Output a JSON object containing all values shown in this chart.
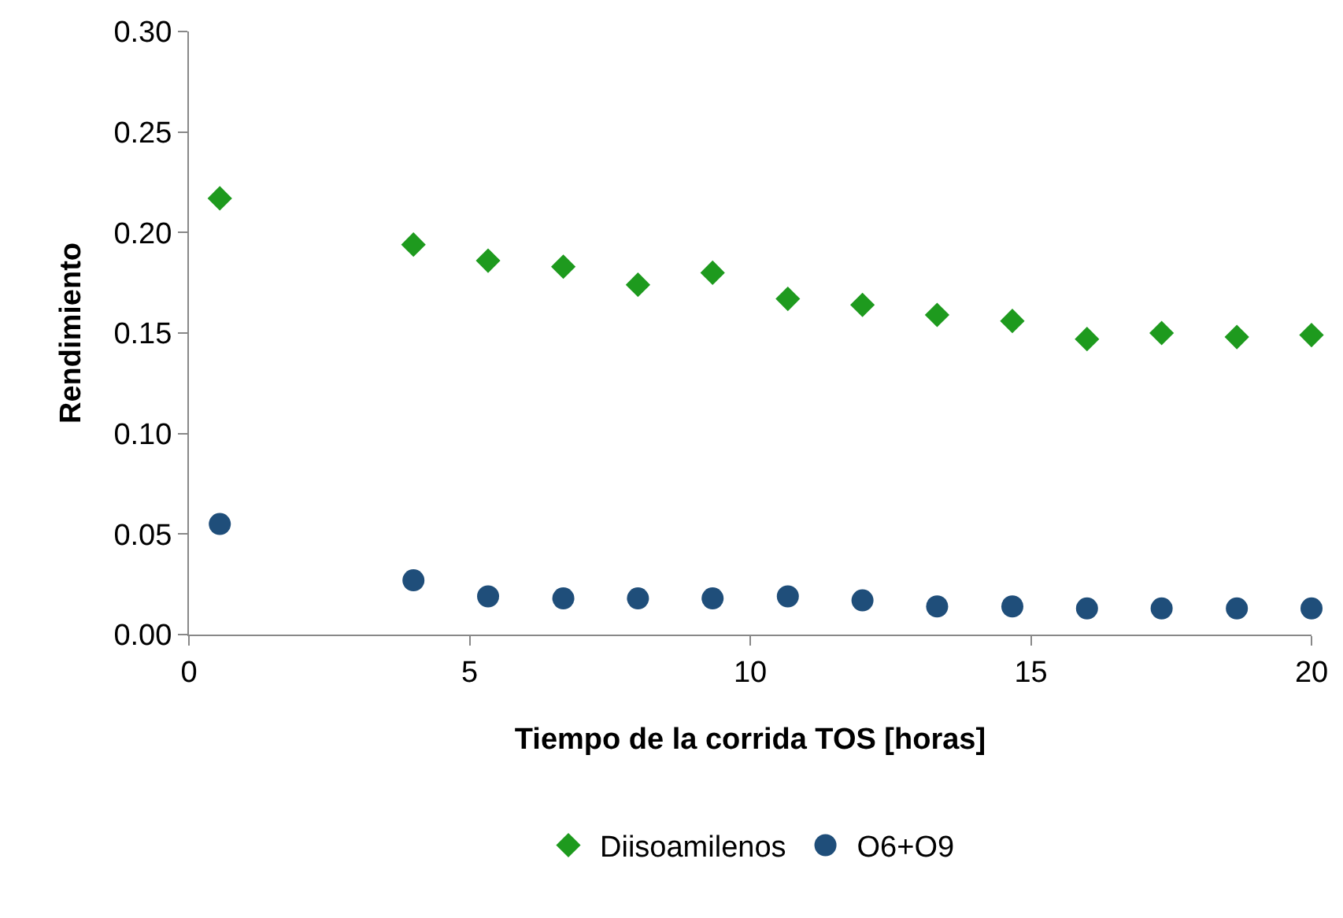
{
  "chart_data": {
    "type": "scatter",
    "xlabel": "Tiempo de la corrida TOS [horas]",
    "ylabel": "Rendimiento",
    "xlim": [
      0,
      20
    ],
    "xticks": [
      0,
      5,
      10,
      15,
      20
    ],
    "ylim": [
      0,
      0.3
    ],
    "yticks": [
      {
        "value": 0,
        "label": "0.00"
      },
      {
        "value": 0.05,
        "label": "0.05"
      },
      {
        "value": 0.1,
        "label": "0.10"
      },
      {
        "value": 0.15,
        "label": "0.15"
      },
      {
        "value": 0.2,
        "label": "0.20"
      },
      {
        "value": 0.25,
        "label": "0.25"
      },
      {
        "value": 0.3,
        "label": "0.30"
      }
    ],
    "grid": false,
    "legend": "bottom",
    "x": [
      0.55,
      4,
      5.33,
      6.67,
      8,
      9.33,
      10.67,
      12,
      13.33,
      14.67,
      16,
      17.33,
      18.67,
      20
    ],
    "series": [
      {
        "name": "Diisoamilenos",
        "color": "#1e9a1e",
        "marker": "diamond",
        "values": [
          0.217,
          0.194,
          0.186,
          0.183,
          0.174,
          0.18,
          0.167,
          0.164,
          0.159,
          0.156,
          0.147,
          0.15,
          0.148,
          0.149
        ]
      },
      {
        "name": "O6+O9",
        "color": "#1f4e7a",
        "marker": "circle",
        "values": [
          0.055,
          0.027,
          0.019,
          0.018,
          0.018,
          0.018,
          0.019,
          0.017,
          0.014,
          0.014,
          0.013,
          0.013,
          0.013,
          0.013
        ]
      }
    ]
  }
}
